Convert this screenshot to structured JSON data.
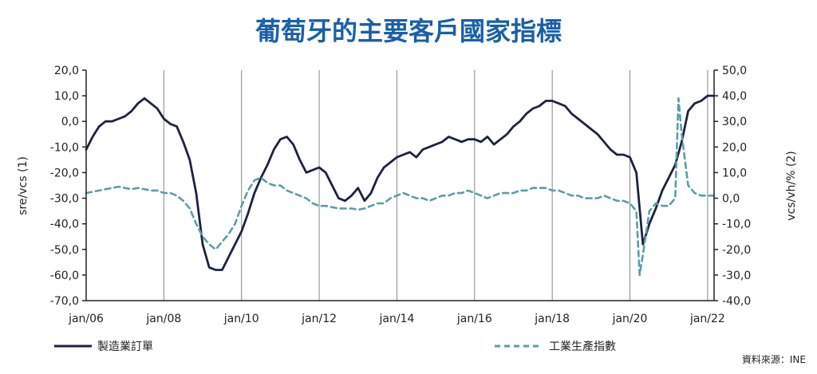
{
  "colors": {
    "title": "#1a5fa8",
    "orders": "#1c2340",
    "production": "#5b9ea6",
    "grid": "#888888"
  },
  "chart_data": {
    "type": "line",
    "title": "葡萄牙的主要客戶國家指標",
    "left_ylabel": "sre/vcs (1)",
    "right_ylabel": "vcs/vh/% (2)",
    "left_ylim": [
      -70,
      20
    ],
    "right_ylim": [
      -40,
      50
    ],
    "left_ticks": [
      "20,0",
      "10,0",
      "0,0",
      "-10,0",
      "-20,0",
      "-30,0",
      "-40,0",
      "-50,0",
      "-60,0",
      "-70,0"
    ],
    "right_ticks": [
      "50,0",
      "40,0",
      "30,0",
      "20,0",
      "10,0",
      "0,0",
      "-10,0",
      "-20,0",
      "-30,0",
      "-40,0"
    ],
    "x_ticks": [
      "jan/06",
      "jan/08",
      "jan/10",
      "jan/12",
      "jan/14",
      "jan/16",
      "jan/18",
      "jan/20",
      "jan/22"
    ],
    "x_range": [
      "2006-01",
      "2022-03"
    ],
    "grid": "vertical",
    "legend_position": "bottom",
    "source": "資料來源：INE",
    "series": [
      {
        "name": "製造業訂單",
        "axis": "left",
        "style": "solid",
        "points": [
          [
            "2006-01",
            -11
          ],
          [
            "2006-03",
            -6
          ],
          [
            "2006-05",
            -2
          ],
          [
            "2006-07",
            0
          ],
          [
            "2006-09",
            0
          ],
          [
            "2006-11",
            1
          ],
          [
            "2007-01",
            2
          ],
          [
            "2007-03",
            4
          ],
          [
            "2007-05",
            7
          ],
          [
            "2007-07",
            9
          ],
          [
            "2007-09",
            7
          ],
          [
            "2007-11",
            5
          ],
          [
            "2008-01",
            1
          ],
          [
            "2008-03",
            -1
          ],
          [
            "2008-05",
            -2
          ],
          [
            "2008-07",
            -8
          ],
          [
            "2008-09",
            -15
          ],
          [
            "2008-11",
            -28
          ],
          [
            "2009-01",
            -48
          ],
          [
            "2009-03",
            -57
          ],
          [
            "2009-05",
            -58
          ],
          [
            "2009-07",
            -58
          ],
          [
            "2009-09",
            -53
          ],
          [
            "2009-11",
            -48
          ],
          [
            "2010-01",
            -43
          ],
          [
            "2010-03",
            -36
          ],
          [
            "2010-05",
            -28
          ],
          [
            "2010-07",
            -22
          ],
          [
            "2010-09",
            -17
          ],
          [
            "2010-11",
            -11
          ],
          [
            "2011-01",
            -7
          ],
          [
            "2011-03",
            -6
          ],
          [
            "2011-05",
            -9
          ],
          [
            "2011-07",
            -15
          ],
          [
            "2011-09",
            -20
          ],
          [
            "2011-11",
            -19
          ],
          [
            "2012-01",
            -18
          ],
          [
            "2012-03",
            -20
          ],
          [
            "2012-05",
            -25
          ],
          [
            "2012-07",
            -30
          ],
          [
            "2012-09",
            -31
          ],
          [
            "2012-11",
            -29
          ],
          [
            "2013-01",
            -26
          ],
          [
            "2013-03",
            -31
          ],
          [
            "2013-05",
            -28
          ],
          [
            "2013-07",
            -22
          ],
          [
            "2013-09",
            -18
          ],
          [
            "2013-11",
            -16
          ],
          [
            "2014-01",
            -14
          ],
          [
            "2014-03",
            -13
          ],
          [
            "2014-05",
            -12
          ],
          [
            "2014-07",
            -14
          ],
          [
            "2014-09",
            -11
          ],
          [
            "2014-11",
            -10
          ],
          [
            "2015-01",
            -9
          ],
          [
            "2015-03",
            -8
          ],
          [
            "2015-05",
            -6
          ],
          [
            "2015-07",
            -7
          ],
          [
            "2015-09",
            -8
          ],
          [
            "2015-11",
            -7
          ],
          [
            "2016-01",
            -7
          ],
          [
            "2016-03",
            -8
          ],
          [
            "2016-05",
            -6
          ],
          [
            "2016-07",
            -9
          ],
          [
            "2016-09",
            -7
          ],
          [
            "2016-11",
            -5
          ],
          [
            "2017-01",
            -2
          ],
          [
            "2017-03",
            0
          ],
          [
            "2017-05",
            3
          ],
          [
            "2017-07",
            5
          ],
          [
            "2017-09",
            6
          ],
          [
            "2017-11",
            8
          ],
          [
            "2018-01",
            8
          ],
          [
            "2018-03",
            7
          ],
          [
            "2018-05",
            6
          ],
          [
            "2018-07",
            3
          ],
          [
            "2018-09",
            1
          ],
          [
            "2018-11",
            -1
          ],
          [
            "2019-01",
            -3
          ],
          [
            "2019-03",
            -5
          ],
          [
            "2019-05",
            -8
          ],
          [
            "2019-07",
            -11
          ],
          [
            "2019-09",
            -13
          ],
          [
            "2019-11",
            -13
          ],
          [
            "2020-01",
            -14
          ],
          [
            "2020-03",
            -20
          ],
          [
            "2020-05",
            -48
          ],
          [
            "2020-07",
            -40
          ],
          [
            "2020-09",
            -34
          ],
          [
            "2020-11",
            -27
          ],
          [
            "2021-01",
            -22
          ],
          [
            "2021-03",
            -17
          ],
          [
            "2021-05",
            -8
          ],
          [
            "2021-07",
            4
          ],
          [
            "2021-09",
            7
          ],
          [
            "2021-11",
            8
          ],
          [
            "2022-01",
            10
          ],
          [
            "2022-03",
            10
          ]
        ]
      },
      {
        "name": "工業生產指數",
        "axis": "right",
        "style": "dashed",
        "points": [
          [
            "2006-01",
            2
          ],
          [
            "2006-03",
            2.5
          ],
          [
            "2006-05",
            3
          ],
          [
            "2006-07",
            3.5
          ],
          [
            "2006-09",
            4
          ],
          [
            "2006-11",
            4.5
          ],
          [
            "2007-01",
            4
          ],
          [
            "2007-03",
            3.5
          ],
          [
            "2007-05",
            4
          ],
          [
            "2007-07",
            3.5
          ],
          [
            "2007-09",
            3
          ],
          [
            "2007-11",
            3
          ],
          [
            "2008-01",
            2
          ],
          [
            "2008-03",
            2
          ],
          [
            "2008-05",
            1
          ],
          [
            "2008-07",
            -1
          ],
          [
            "2008-09",
            -4
          ],
          [
            "2008-11",
            -10
          ],
          [
            "2009-01",
            -15
          ],
          [
            "2009-03",
            -18
          ],
          [
            "2009-05",
            -20
          ],
          [
            "2009-07",
            -17
          ],
          [
            "2009-09",
            -14
          ],
          [
            "2009-11",
            -10
          ],
          [
            "2010-01",
            -3
          ],
          [
            "2010-03",
            3
          ],
          [
            "2010-05",
            7
          ],
          [
            "2010-07",
            8
          ],
          [
            "2010-09",
            6
          ],
          [
            "2010-11",
            5
          ],
          [
            "2011-01",
            5
          ],
          [
            "2011-03",
            3
          ],
          [
            "2011-05",
            2
          ],
          [
            "2011-07",
            1
          ],
          [
            "2011-09",
            0
          ],
          [
            "2011-11",
            -2
          ],
          [
            "2012-01",
            -3
          ],
          [
            "2012-03",
            -3
          ],
          [
            "2012-05",
            -3.5
          ],
          [
            "2012-07",
            -4
          ],
          [
            "2012-09",
            -4
          ],
          [
            "2012-11",
            -4
          ],
          [
            "2013-01",
            -4.5
          ],
          [
            "2013-03",
            -4
          ],
          [
            "2013-05",
            -3
          ],
          [
            "2013-07",
            -2
          ],
          [
            "2013-09",
            -2
          ],
          [
            "2013-11",
            0
          ],
          [
            "2014-01",
            1
          ],
          [
            "2014-03",
            2
          ],
          [
            "2014-05",
            1
          ],
          [
            "2014-07",
            0
          ],
          [
            "2014-09",
            0
          ],
          [
            "2014-11",
            -1
          ],
          [
            "2015-01",
            0
          ],
          [
            "2015-03",
            1
          ],
          [
            "2015-05",
            1
          ],
          [
            "2015-07",
            2
          ],
          [
            "2015-09",
            2
          ],
          [
            "2015-11",
            3
          ],
          [
            "2016-01",
            2
          ],
          [
            "2016-03",
            1
          ],
          [
            "2016-05",
            0
          ],
          [
            "2016-07",
            1
          ],
          [
            "2016-09",
            2
          ],
          [
            "2016-11",
            2
          ],
          [
            "2017-01",
            2
          ],
          [
            "2017-03",
            3
          ],
          [
            "2017-05",
            3
          ],
          [
            "2017-07",
            4
          ],
          [
            "2017-09",
            4
          ],
          [
            "2017-11",
            4
          ],
          [
            "2018-01",
            3
          ],
          [
            "2018-03",
            3
          ],
          [
            "2018-05",
            2
          ],
          [
            "2018-07",
            1
          ],
          [
            "2018-09",
            1
          ],
          [
            "2018-11",
            0
          ],
          [
            "2019-01",
            0
          ],
          [
            "2019-03",
            0
          ],
          [
            "2019-05",
            1
          ],
          [
            "2019-07",
            0
          ],
          [
            "2019-09",
            -1
          ],
          [
            "2019-11",
            -1
          ],
          [
            "2020-01",
            -2
          ],
          [
            "2020-03",
            -5
          ],
          [
            "2020-04",
            -30
          ],
          [
            "2020-05",
            -22
          ],
          [
            "2020-07",
            -5
          ],
          [
            "2020-09",
            -2
          ],
          [
            "2020-11",
            -3
          ],
          [
            "2021-01",
            -3
          ],
          [
            "2021-03",
            0
          ],
          [
            "2021-04",
            39
          ],
          [
            "2021-05",
            25
          ],
          [
            "2021-07",
            5
          ],
          [
            "2021-09",
            2
          ],
          [
            "2021-11",
            1
          ],
          [
            "2022-01",
            1
          ],
          [
            "2022-03",
            1
          ]
        ]
      }
    ]
  }
}
